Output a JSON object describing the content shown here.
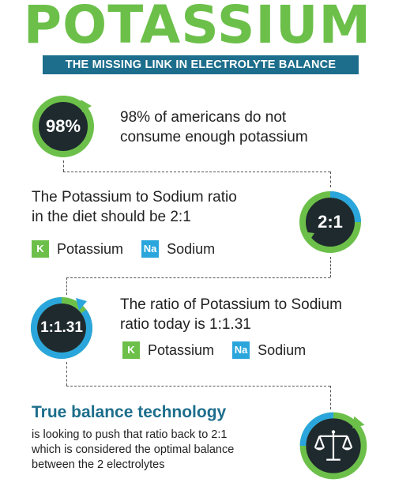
{
  "header": {
    "title": "POTASSIUM",
    "banner": "THE MISSING LINK IN ELECTROLYTE BALANCE"
  },
  "section1": {
    "ring_label": "98%",
    "text_line1": "98% of americans do not",
    "text_line2": "consume enough potassium"
  },
  "section2": {
    "ring_label": "2:1",
    "text_line1": "The Potassium to Sodium ratio",
    "text_line2": "in the diet should be 2:1",
    "legend": {
      "k_badge": "K",
      "k_label": "Potassium",
      "na_badge": "Na",
      "na_label": "Sodium"
    }
  },
  "section3": {
    "ring_label": "1:1.31",
    "text_line1": "The ratio of Potassium to Sodium",
    "text_line2": "ratio today is 1:1.31",
    "legend": {
      "k_badge": "K",
      "k_label": "Potassium",
      "na_badge": "Na",
      "na_label": "Sodium"
    }
  },
  "section4": {
    "title": "True balance technology",
    "body_line1": "is looking to push that ratio back to 2:1",
    "body_line2": "which is considered the optimal balance",
    "body_line3": "between the 2 electrolytes",
    "icon": "balance-scale-icon"
  },
  "colors": {
    "green": "#6cc04a",
    "blue": "#2aa6dc",
    "teal": "#1d6e8c",
    "dark": "#1f2a2e"
  }
}
